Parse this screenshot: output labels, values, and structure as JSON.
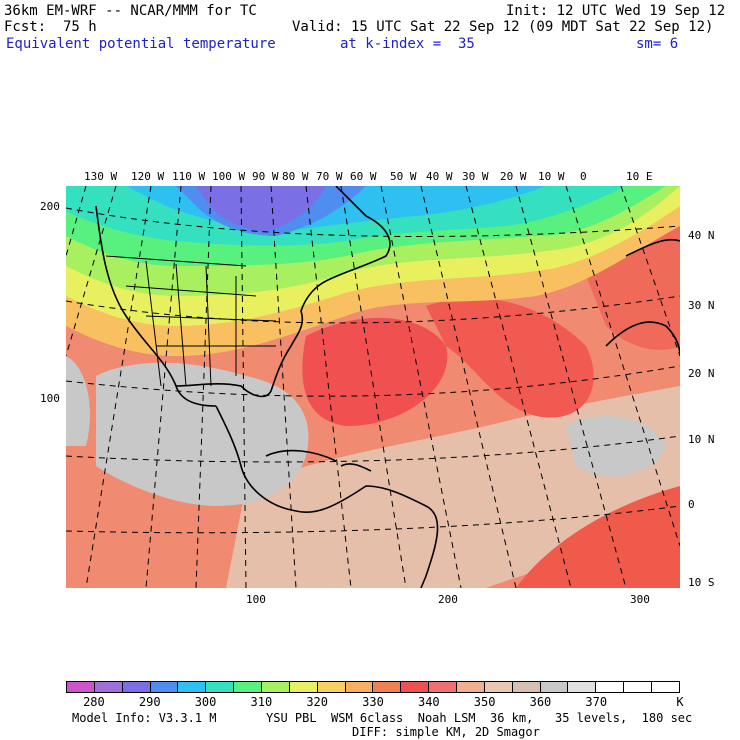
{
  "header": {
    "model": "36km EM-WRF -- NCAR/MMM for TC",
    "init": "Init: 12 UTC Wed 19 Sep 12",
    "fcst": "Fcst:  75 h",
    "valid": "Valid: 15 UTC Sat 22 Sep 12 (09 MDT Sat 22 Sep 12)",
    "field": "Equivalent potential temperature",
    "level": "at k-index =  35",
    "smooth": "sm= 6"
  },
  "map": {
    "top_lon_labels": [
      "130 W",
      "120 W",
      "110 W",
      "100 W",
      "90 W",
      "80 W",
      "70 W",
      "60 W",
      "50 W",
      "40 W",
      "30 W",
      "20 W",
      "10 W",
      "0",
      "10 E"
    ],
    "right_lat_labels": [
      "40 N",
      "30 N",
      "20 N",
      "10 N",
      "0",
      "10 S"
    ],
    "left_y_labels": [
      "200",
      "100"
    ],
    "bottom_x_labels": [
      "100",
      "200",
      "300"
    ],
    "colors": {
      "cold_core": "#8c73e6",
      "cyan": "#33cccc",
      "warm_red": "#f05050",
      "tan": "#e6bfaa",
      "gray": "#c8c8c8"
    }
  },
  "colorbar": {
    "colors": [
      "#cc55cc",
      "#a070d8",
      "#7b6fe6",
      "#4f8ef0",
      "#2ec0f0",
      "#35e0c0",
      "#58f07e",
      "#a8f060",
      "#e8f060",
      "#f8d060",
      "#f8b060",
      "#f08050",
      "#f05050",
      "#f07070",
      "#f0b090",
      "#e8c8b0",
      "#d8c0b0",
      "#c8c8c8",
      "#e0e0e0",
      "#ffffff",
      "#ffffff",
      "#ffffff"
    ],
    "labels": [
      "280",
      "290",
      "300",
      "310",
      "320",
      "330",
      "340",
      "350",
      "360",
      "370"
    ],
    "unit": "K"
  },
  "footer": {
    "line1_left": "Model Info: V3.3.1 M",
    "line1_right": "YSU PBL  WSM 6class  Noah LSM  36 km,   35 levels,  180 sec",
    "line2": "DIFF: simple KM, 2D Smagor"
  }
}
